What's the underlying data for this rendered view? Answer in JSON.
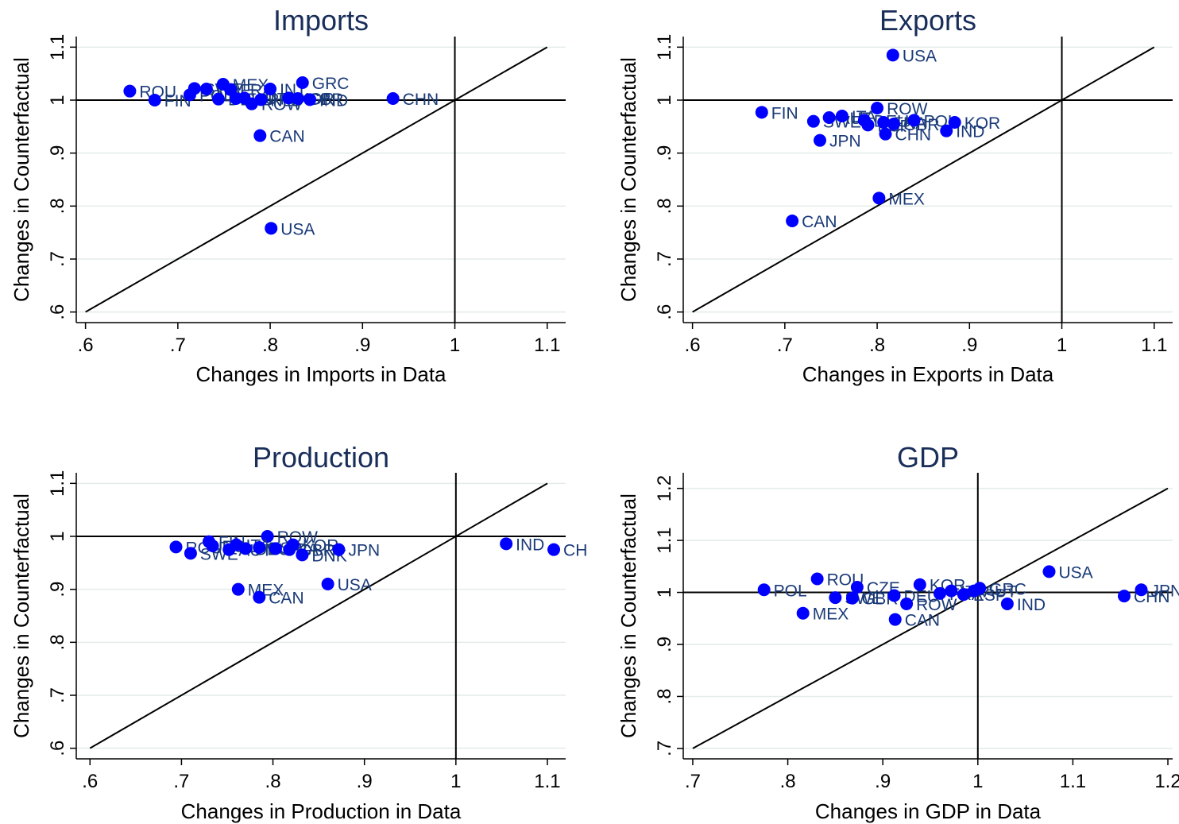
{
  "chart_data": [
    {
      "type": "scatter",
      "title": "Imports",
      "xlabel": "Changes in Imports in Data",
      "ylabel": "Changes in Counterfactual",
      "xlim": [
        0.59,
        1.12
      ],
      "ylim": [
        0.58,
        1.12
      ],
      "xticks": [
        0.6,
        0.7,
        0.8,
        0.9,
        1.0,
        1.1
      ],
      "yticks": [
        0.6,
        0.7,
        0.8,
        0.9,
        1.0,
        1.1
      ],
      "xtick_labels": [
        ".6",
        ".7",
        ".8",
        ".9",
        "1",
        "1.1"
      ],
      "ytick_labels": [
        ".6",
        ".7",
        ".8",
        ".9",
        "1",
        "1.1"
      ],
      "diagonal": [
        0.6,
        1.1
      ],
      "vline": 1.0,
      "hline": 1.0,
      "points": [
        {
          "label": "ROU",
          "x": 0.648,
          "y": 1.017
        },
        {
          "label": "FIN",
          "x": 0.675,
          "y": 1.0
        },
        {
          "label": "POL",
          "x": 0.713,
          "y": 1.01
        },
        {
          "label": "SWE",
          "x": 0.718,
          "y": 1.022
        },
        {
          "label": "ITA",
          "x": 0.731,
          "y": 1.021
        },
        {
          "label": "DEU",
          "x": 0.744,
          "y": 1.002
        },
        {
          "label": "MEX",
          "x": 0.749,
          "y": 1.03
        },
        {
          "label": "FRA",
          "x": 0.757,
          "y": 1.02
        },
        {
          "label": "ESP",
          "x": 0.763,
          "y": 1.003
        },
        {
          "label": "AUT",
          "x": 0.772,
          "y": 1.004
        },
        {
          "label": "ROW",
          "x": 0.78,
          "y": 0.993
        },
        {
          "label": "NLD",
          "x": 0.79,
          "y": 1.001
        },
        {
          "label": "INT",
          "x": 0.8,
          "y": 1.021
        },
        {
          "label": "KOR",
          "x": 0.82,
          "y": 1.004
        },
        {
          "label": "GBR",
          "x": 0.83,
          "y": 1.003
        },
        {
          "label": "GRC",
          "x": 0.835,
          "y": 1.033
        },
        {
          "label": "IND",
          "x": 0.843,
          "y": 1.001
        },
        {
          "label": "CHN",
          "x": 0.933,
          "y": 1.003
        },
        {
          "label": "CAN",
          "x": 0.789,
          "y": 0.933
        },
        {
          "label": "USA",
          "x": 0.801,
          "y": 0.758
        }
      ]
    },
    {
      "type": "scatter",
      "title": "Exports",
      "xlabel": "Changes in Exports in Data",
      "ylabel": "Changes in Counterfactual",
      "xlim": [
        0.59,
        1.12
      ],
      "ylim": [
        0.58,
        1.12
      ],
      "xticks": [
        0.6,
        0.7,
        0.8,
        0.9,
        1.0,
        1.1
      ],
      "yticks": [
        0.6,
        0.7,
        0.8,
        0.9,
        1.0,
        1.1
      ],
      "xtick_labels": [
        ".6",
        ".7",
        ".8",
        ".9",
        "1",
        "1.1"
      ],
      "ytick_labels": [
        ".6",
        ".7",
        ".8",
        ".9",
        "1",
        "1.1"
      ],
      "diagonal": [
        0.6,
        1.1
      ],
      "vline": 1.0,
      "hline": 1.0,
      "points": [
        {
          "label": "USA",
          "x": 0.817,
          "y": 1.085
        },
        {
          "label": "FIN",
          "x": 0.675,
          "y": 0.977
        },
        {
          "label": "SWE",
          "x": 0.731,
          "y": 0.96
        },
        {
          "label": "AUT",
          "x": 0.748,
          "y": 0.967
        },
        {
          "label": "ITA",
          "x": 0.762,
          "y": 0.97
        },
        {
          "label": "JPN",
          "x": 0.738,
          "y": 0.924
        },
        {
          "label": "ROW",
          "x": 0.8,
          "y": 0.985
        },
        {
          "label": "DEU",
          "x": 0.786,
          "y": 0.962
        },
        {
          "label": "ESP",
          "x": 0.79,
          "y": 0.953
        },
        {
          "label": "FRA",
          "x": 0.807,
          "y": 0.958
        },
        {
          "label": "GBR",
          "x": 0.818,
          "y": 0.955
        },
        {
          "label": "CHN",
          "x": 0.809,
          "y": 0.936
        },
        {
          "label": "POL",
          "x": 0.84,
          "y": 0.962
        },
        {
          "label": "IND",
          "x": 0.875,
          "y": 0.942
        },
        {
          "label": "KOR",
          "x": 0.884,
          "y": 0.958
        },
        {
          "label": "MEX",
          "x": 0.802,
          "y": 0.815
        },
        {
          "label": "CAN",
          "x": 0.708,
          "y": 0.772
        }
      ]
    },
    {
      "type": "scatter",
      "title": "Production",
      "xlabel": "Changes in Production in Data",
      "ylabel": "Changes in Counterfactual",
      "xlim": [
        0.585,
        1.12
      ],
      "ylim": [
        0.58,
        1.12
      ],
      "xticks": [
        0.6,
        0.7,
        0.8,
        0.9,
        1.0,
        1.1
      ],
      "yticks": [
        0.6,
        0.7,
        0.8,
        0.9,
        1.0,
        1.1
      ],
      "xtick_labels": [
        ".6",
        ".7",
        ".8",
        ".9",
        "1",
        "1.1"
      ],
      "ytick_labels": [
        ".6",
        ".7",
        ".8",
        ".9",
        "1",
        "1.1"
      ],
      "diagonal": [
        0.6,
        1.1
      ],
      "vline": 1.0,
      "hline": 1.0,
      "points": [
        {
          "label": "ROW",
          "x": 0.794,
          "y": 1.0
        },
        {
          "label": "ROU",
          "x": 0.694,
          "y": 0.98
        },
        {
          "label": "SWE",
          "x": 0.71,
          "y": 0.968
        },
        {
          "label": "FIN",
          "x": 0.73,
          "y": 0.99
        },
        {
          "label": "POL",
          "x": 0.734,
          "y": 0.982
        },
        {
          "label": "AUT",
          "x": 0.752,
          "y": 0.975
        },
        {
          "label": "ITA",
          "x": 0.76,
          "y": 0.984
        },
        {
          "label": "DEU",
          "x": 0.77,
          "y": 0.977
        },
        {
          "label": "ESP",
          "x": 0.785,
          "y": 0.979
        },
        {
          "label": "FRA",
          "x": 0.803,
          "y": 0.977
        },
        {
          "label": "GBR",
          "x": 0.818,
          "y": 0.975
        },
        {
          "label": "KOR",
          "x": 0.822,
          "y": 0.984
        },
        {
          "label": "DNK",
          "x": 0.832,
          "y": 0.965
        },
        {
          "label": "JPN",
          "x": 0.872,
          "y": 0.975
        },
        {
          "label": "MEX",
          "x": 0.762,
          "y": 0.9
        },
        {
          "label": "CAN",
          "x": 0.785,
          "y": 0.885
        },
        {
          "label": "USA",
          "x": 0.86,
          "y": 0.91
        },
        {
          "label": "IND",
          "x": 1.055,
          "y": 0.986
        },
        {
          "label": "CH",
          "x": 1.107,
          "y": 0.975
        }
      ]
    },
    {
      "type": "scatter",
      "title": "GDP",
      "xlabel": "Changes in GDP in Data",
      "ylabel": "Changes in Counterfactual",
      "xlim": [
        0.69,
        1.205
      ],
      "ylim": [
        0.68,
        1.23
      ],
      "xticks": [
        0.7,
        0.8,
        0.9,
        1.0,
        1.1,
        1.2
      ],
      "yticks": [
        0.7,
        0.8,
        0.9,
        1.0,
        1.1,
        1.2
      ],
      "xtick_labels": [
        ".7",
        ".8",
        ".9",
        "1",
        "1.1",
        "1.2"
      ],
      "ytick_labels": [
        ".7",
        ".8",
        ".9",
        "1",
        "1.1",
        "1.2"
      ],
      "diagonal": [
        0.7,
        1.2
      ],
      "vline": 1.0,
      "hline": 1.0,
      "points": [
        {
          "label": "POL",
          "x": 0.775,
          "y": 1.005
        },
        {
          "label": "ROU",
          "x": 0.831,
          "y": 1.026
        },
        {
          "label": "MEX",
          "x": 0.816,
          "y": 0.96
        },
        {
          "label": "SWE",
          "x": 0.85,
          "y": 0.99
        },
        {
          "label": "CZE",
          "x": 0.873,
          "y": 1.01
        },
        {
          "label": "GBR",
          "x": 0.868,
          "y": 0.989
        },
        {
          "label": "DEU",
          "x": 0.912,
          "y": 0.994
        },
        {
          "label": "ROW",
          "x": 0.925,
          "y": 0.978
        },
        {
          "label": "CAN",
          "x": 0.913,
          "y": 0.948
        },
        {
          "label": "KOR",
          "x": 0.939,
          "y": 1.015
        },
        {
          "label": "FRA",
          "x": 0.96,
          "y": 0.998
        },
        {
          "label": "ITA",
          "x": 0.972,
          "y": 1.003
        },
        {
          "label": "ESP",
          "x": 0.985,
          "y": 0.996
        },
        {
          "label": "AUT",
          "x": 0.996,
          "y": 1.003
        },
        {
          "label": "GRC",
          "x": 1.002,
          "y": 1.008
        },
        {
          "label": "IND",
          "x": 1.031,
          "y": 0.978
        },
        {
          "label": "USA",
          "x": 1.075,
          "y": 1.04
        },
        {
          "label": "CHN",
          "x": 1.154,
          "y": 0.993
        },
        {
          "label": "JPN",
          "x": 1.172,
          "y": 1.005
        }
      ]
    }
  ]
}
